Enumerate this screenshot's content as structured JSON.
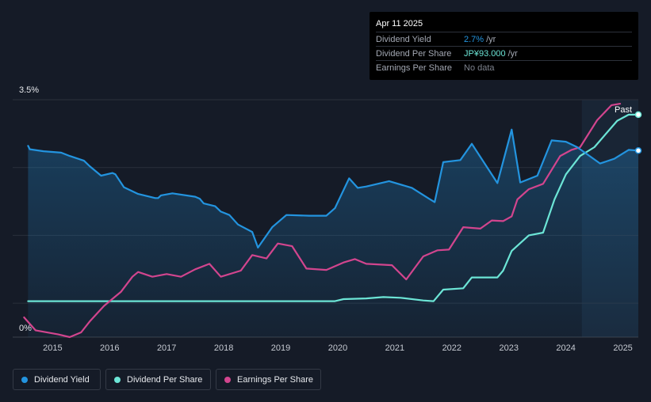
{
  "tooltip": {
    "date": "Apr 11 2025",
    "rows": [
      {
        "label": "Dividend Yield",
        "value": "2.7%",
        "unit": "/yr",
        "color": "#2394df"
      },
      {
        "label": "Dividend Per Share",
        "value": "JP¥93.000",
        "unit": "/yr",
        "color": "#6ce5d6"
      },
      {
        "label": "Earnings Per Share",
        "value": "No data",
        "unit": "",
        "color": "#7d828c"
      }
    ]
  },
  "past_label": "Past",
  "legend": [
    {
      "label": "Dividend Yield",
      "color": "#2394df"
    },
    {
      "label": "Dividend Per Share",
      "color": "#6ce5d6"
    },
    {
      "label": "Earnings Per Share",
      "color": "#d2458e"
    }
  ],
  "chart_data": {
    "type": "line",
    "y_tick_labels": [
      "3.5%",
      "0%"
    ],
    "ylim": [
      0,
      3.5
    ],
    "xlim": [
      2014.3,
      2025.27
    ],
    "x_tick_labels": [
      "2015",
      "2016",
      "2017",
      "2018",
      "2019",
      "2020",
      "2021",
      "2022",
      "2023",
      "2024",
      "2025"
    ],
    "past_region_start": 2024.28,
    "series": [
      {
        "name": "Dividend Yield",
        "color": "#2394df",
        "points": [
          [
            2014.57,
            2.82
          ],
          [
            2014.6,
            2.77
          ],
          [
            2014.84,
            2.74
          ],
          [
            2015.15,
            2.72
          ],
          [
            2015.3,
            2.67
          ],
          [
            2015.55,
            2.6
          ],
          [
            2015.65,
            2.52
          ],
          [
            2015.85,
            2.38
          ],
          [
            2016.05,
            2.42
          ],
          [
            2016.1,
            2.4
          ],
          [
            2016.25,
            2.21
          ],
          [
            2016.5,
            2.11
          ],
          [
            2016.8,
            2.05
          ],
          [
            2016.85,
            2.05
          ],
          [
            2016.9,
            2.09
          ],
          [
            2017.1,
            2.12
          ],
          [
            2017.5,
            2.07
          ],
          [
            2017.58,
            2.04
          ],
          [
            2017.65,
            1.97
          ],
          [
            2017.85,
            1.93
          ],
          [
            2017.95,
            1.85
          ],
          [
            2018.1,
            1.8
          ],
          [
            2018.25,
            1.66
          ],
          [
            2018.5,
            1.55
          ],
          [
            2018.6,
            1.32
          ],
          [
            2018.85,
            1.62
          ],
          [
            2019.1,
            1.8
          ],
          [
            2019.5,
            1.79
          ],
          [
            2019.8,
            1.79
          ],
          [
            2019.95,
            1.9
          ],
          [
            2020.2,
            2.34
          ],
          [
            2020.35,
            2.2
          ],
          [
            2020.5,
            2.22
          ],
          [
            2020.9,
            2.3
          ],
          [
            2021.3,
            2.2
          ],
          [
            2021.6,
            2.04
          ],
          [
            2021.7,
            1.99
          ],
          [
            2021.85,
            2.58
          ],
          [
            2022.15,
            2.61
          ],
          [
            2022.35,
            2.85
          ],
          [
            2022.8,
            2.27
          ],
          [
            2023.05,
            3.06
          ],
          [
            2023.2,
            2.28
          ],
          [
            2023.5,
            2.38
          ],
          [
            2023.75,
            2.9
          ],
          [
            2024.0,
            2.88
          ],
          [
            2024.2,
            2.8
          ],
          [
            2024.6,
            2.56
          ],
          [
            2024.85,
            2.63
          ],
          [
            2025.1,
            2.76
          ],
          [
            2025.27,
            2.75
          ]
        ]
      },
      {
        "name": "Dividend Per Share",
        "color": "#6ce5d6",
        "points": [
          [
            2014.57,
            0.53
          ],
          [
            2019.95,
            0.53
          ],
          [
            2020.1,
            0.56
          ],
          [
            2020.5,
            0.57
          ],
          [
            2020.8,
            0.59
          ],
          [
            2021.1,
            0.58
          ],
          [
            2021.5,
            0.54
          ],
          [
            2021.68,
            0.53
          ],
          [
            2021.85,
            0.7
          ],
          [
            2022.2,
            0.72
          ],
          [
            2022.35,
            0.88
          ],
          [
            2022.8,
            0.88
          ],
          [
            2022.9,
            0.98
          ],
          [
            2023.05,
            1.27
          ],
          [
            2023.35,
            1.5
          ],
          [
            2023.6,
            1.54
          ],
          [
            2023.8,
            2.03
          ],
          [
            2024.0,
            2.4
          ],
          [
            2024.25,
            2.67
          ],
          [
            2024.5,
            2.8
          ],
          [
            2024.9,
            3.19
          ],
          [
            2025.1,
            3.28
          ],
          [
            2025.27,
            3.28
          ]
        ]
      },
      {
        "name": "Earnings Per Share",
        "color": "#d2458e",
        "points": [
          [
            2014.5,
            0.29
          ],
          [
            2014.7,
            0.1
          ],
          [
            2015.1,
            0.04
          ],
          [
            2015.3,
            0.0
          ],
          [
            2015.5,
            0.07
          ],
          [
            2015.65,
            0.23
          ],
          [
            2015.9,
            0.46
          ],
          [
            2016.2,
            0.67
          ],
          [
            2016.4,
            0.89
          ],
          [
            2016.5,
            0.96
          ],
          [
            2016.75,
            0.89
          ],
          [
            2017.0,
            0.93
          ],
          [
            2017.25,
            0.89
          ],
          [
            2017.5,
            1.0
          ],
          [
            2017.75,
            1.08
          ],
          [
            2017.95,
            0.89
          ],
          [
            2018.3,
            0.98
          ],
          [
            2018.5,
            1.21
          ],
          [
            2018.75,
            1.16
          ],
          [
            2018.95,
            1.38
          ],
          [
            2019.2,
            1.34
          ],
          [
            2019.45,
            1.01
          ],
          [
            2019.8,
            0.99
          ],
          [
            2020.1,
            1.1
          ],
          [
            2020.3,
            1.15
          ],
          [
            2020.5,
            1.08
          ],
          [
            2020.95,
            1.06
          ],
          [
            2021.2,
            0.85
          ],
          [
            2021.5,
            1.19
          ],
          [
            2021.75,
            1.28
          ],
          [
            2021.95,
            1.29
          ],
          [
            2022.2,
            1.62
          ],
          [
            2022.5,
            1.6
          ],
          [
            2022.7,
            1.72
          ],
          [
            2022.9,
            1.71
          ],
          [
            2023.05,
            1.78
          ],
          [
            2023.15,
            2.03
          ],
          [
            2023.35,
            2.18
          ],
          [
            2023.6,
            2.26
          ],
          [
            2023.9,
            2.67
          ],
          [
            2024.1,
            2.76
          ],
          [
            2024.25,
            2.8
          ],
          [
            2024.55,
            3.2
          ],
          [
            2024.8,
            3.42
          ],
          [
            2024.95,
            3.44
          ]
        ]
      }
    ]
  }
}
